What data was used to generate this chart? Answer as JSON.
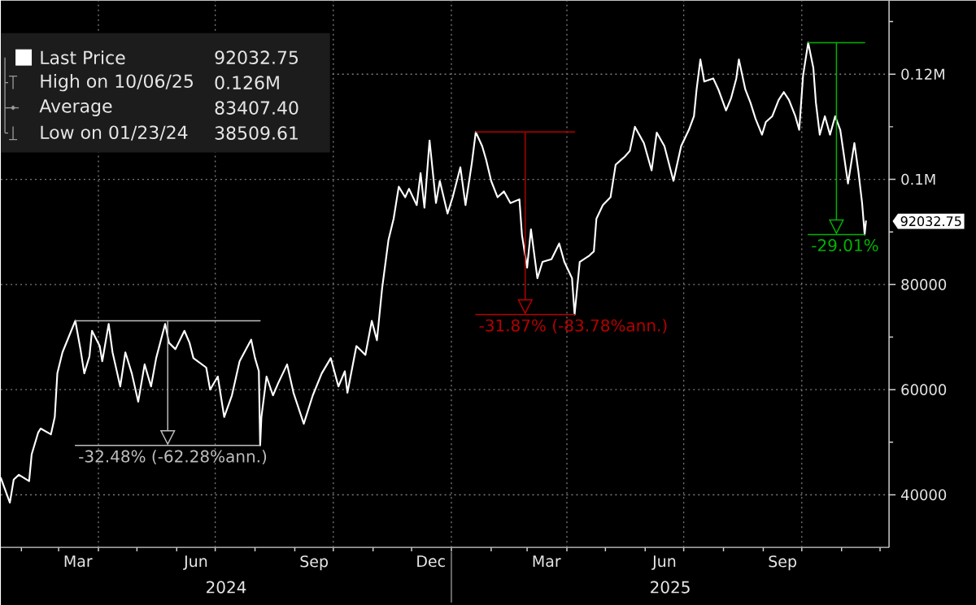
{
  "chart_data": {
    "type": "line",
    "xlim": [
      "2024-01-16",
      "2025-12-08"
    ],
    "ylim": [
      30000,
      134000
    ],
    "xticks": [
      {
        "value": "2024-02-01",
        "label": null
      },
      {
        "value": "2024-03-01",
        "label": null
      },
      {
        "value": "2024-03-16",
        "label": "Mar"
      },
      {
        "value": "2024-04-01",
        "label": null
      },
      {
        "value": "2024-05-01",
        "label": null
      },
      {
        "value": "2024-06-01",
        "label": null
      },
      {
        "value": "2024-06-16",
        "label": "Jun"
      },
      {
        "value": "2024-07-01",
        "label": null
      },
      {
        "value": "2024-08-01",
        "label": null
      },
      {
        "value": "2024-09-01",
        "label": null
      },
      {
        "value": "2024-09-16",
        "label": "Sep"
      },
      {
        "value": "2024-10-01",
        "label": null
      },
      {
        "value": "2024-11-01",
        "label": null
      },
      {
        "value": "2024-12-01",
        "label": null
      },
      {
        "value": "2024-12-16",
        "label": "Dec"
      },
      {
        "value": "2025-01-01",
        "label": null
      },
      {
        "value": "2025-02-01",
        "label": null
      },
      {
        "value": "2025-03-01",
        "label": null
      },
      {
        "value": "2025-03-16",
        "label": "Mar"
      },
      {
        "value": "2025-04-01",
        "label": null
      },
      {
        "value": "2025-05-01",
        "label": null
      },
      {
        "value": "2025-06-01",
        "label": null
      },
      {
        "value": "2025-06-16",
        "label": "Jun"
      },
      {
        "value": "2025-07-01",
        "label": null
      },
      {
        "value": "2025-08-01",
        "label": null
      },
      {
        "value": "2025-09-01",
        "label": null
      },
      {
        "value": "2025-09-16",
        "label": "Sep"
      },
      {
        "value": "2025-10-01",
        "label": null
      },
      {
        "value": "2025-11-01",
        "label": null
      },
      {
        "value": "2025-12-01",
        "label": null
      }
    ],
    "yticks": [
      40000,
      {
        "value": 50000,
        "label": null
      },
      60000,
      {
        "value": 70000,
        "label": null
      },
      80000,
      {
        "value": 90000,
        "label": null
      },
      {
        "value": 100000,
        "label": "0.1M"
      },
      {
        "value": 110000,
        "label": null
      },
      {
        "value": 120000,
        "label": "0.12M"
      },
      {
        "value": 130000,
        "label": null
      }
    ],
    "grid": true,
    "legend": "top left",
    "series": [
      {
        "name": "Last Price",
        "color": "#ffffff",
        "x": [
          "2024-01-16",
          "2024-01-23",
          "2024-01-26",
          "2024-01-30",
          "2024-02-07",
          "2024-02-09",
          "2024-02-14",
          "2024-02-16",
          "2024-02-24",
          "2024-02-27",
          "2024-02-29",
          "2024-03-04",
          "2024-03-08",
          "2024-03-14",
          "2024-03-18",
          "2024-03-21",
          "2024-03-25",
          "2024-03-27",
          "2024-04-02",
          "2024-04-04",
          "2024-04-09",
          "2024-04-12",
          "2024-04-18",
          "2024-04-22",
          "2024-04-27",
          "2024-05-02",
          "2024-05-07",
          "2024-05-12",
          "2024-05-16",
          "2024-05-23",
          "2024-05-26",
          "2024-05-31",
          "2024-06-07",
          "2024-06-11",
          "2024-06-14",
          "2024-06-24",
          "2024-06-27",
          "2024-07-03",
          "2024-07-08",
          "2024-07-14",
          "2024-07-20",
          "2024-07-25",
          "2024-07-29",
          "2024-08-01",
          "2024-08-04",
          "2024-08-05",
          "2024-08-06",
          "2024-08-10",
          "2024-08-15",
          "2024-08-19",
          "2024-08-26",
          "2024-08-31",
          "2024-09-08",
          "2024-09-15",
          "2024-09-22",
          "2024-09-29",
          "2024-10-05",
          "2024-10-10",
          "2024-10-12",
          "2024-10-19",
          "2024-10-26",
          "2024-10-31",
          "2024-11-04",
          "2024-11-08",
          "2024-11-13",
          "2024-11-17",
          "2024-11-21",
          "2024-11-26",
          "2024-11-29",
          "2024-12-05",
          "2024-12-08",
          "2024-12-11",
          "2024-12-15",
          "2024-12-20",
          "2024-12-23",
          "2024-12-29",
          "2025-01-02",
          "2025-01-08",
          "2025-01-12",
          "2025-01-17",
          "2025-01-20",
          "2025-01-25",
          "2025-01-28",
          "2025-02-01",
          "2025-02-06",
          "2025-02-11",
          "2025-02-16",
          "2025-02-23",
          "2025-02-25",
          "2025-03-01",
          "2025-03-04",
          "2025-03-09",
          "2025-03-13",
          "2025-03-20",
          "2025-03-26",
          "2025-03-30",
          "2025-04-05",
          "2025-04-07",
          "2025-04-11",
          "2025-04-18",
          "2025-04-22",
          "2025-04-24",
          "2025-04-29",
          "2025-05-05",
          "2025-05-09",
          "2025-05-16",
          "2025-05-20",
          "2025-05-24",
          "2025-05-31",
          "2025-06-06",
          "2025-06-10",
          "2025-06-16",
          "2025-06-23",
          "2025-06-29",
          "2025-07-05",
          "2025-07-09",
          "2025-07-11",
          "2025-07-14",
          "2025-07-17",
          "2025-07-24",
          "2025-07-28",
          "2025-07-31",
          "2025-08-03",
          "2025-08-07",
          "2025-08-11",
          "2025-08-13",
          "2025-08-18",
          "2025-08-22",
          "2025-08-26",
          "2025-08-31",
          "2025-09-03",
          "2025-09-08",
          "2025-09-13",
          "2025-09-17",
          "2025-09-21",
          "2025-09-26",
          "2025-09-29",
          "2025-10-02",
          "2025-10-06",
          "2025-10-10",
          "2025-10-12",
          "2025-10-15",
          "2025-10-19",
          "2025-10-23",
          "2025-10-27",
          "2025-10-31",
          "2025-11-03",
          "2025-11-06",
          "2025-11-11",
          "2025-11-14",
          "2025-11-17",
          "2025-11-19",
          "2025-11-20"
        ],
        "values": [
          43200,
          38500,
          42900,
          43800,
          42600,
          47700,
          51800,
          52600,
          51500,
          54800,
          63100,
          67100,
          69500,
          73100,
          67700,
          63100,
          66300,
          71200,
          68300,
          65400,
          72500,
          67100,
          60600,
          67100,
          63100,
          57700,
          64800,
          60600,
          66000,
          72500,
          68900,
          67700,
          71200,
          68900,
          66000,
          64200,
          60000,
          62500,
          54800,
          58900,
          65400,
          67700,
          69500,
          66000,
          63500,
          49400,
          54800,
          62500,
          58900,
          61200,
          64800,
          59400,
          53500,
          58900,
          63100,
          66000,
          60600,
          63500,
          59400,
          68300,
          66600,
          73100,
          69400,
          79200,
          88500,
          92500,
          98600,
          96600,
          98200,
          95100,
          101200,
          94600,
          107400,
          95500,
          99700,
          93500,
          96600,
          102300,
          95100,
          103200,
          109000,
          106300,
          103800,
          99700,
          96600,
          97700,
          95500,
          96200,
          89400,
          83200,
          90500,
          81200,
          84300,
          84800,
          87800,
          84300,
          81200,
          74300,
          84300,
          85400,
          86300,
          92500,
          95100,
          96600,
          102800,
          104300,
          105400,
          110000,
          106900,
          101700,
          108900,
          106300,
          99700,
          106300,
          109400,
          112000,
          117000,
          122800,
          118600,
          119200,
          117100,
          115100,
          113100,
          115500,
          119200,
          122800,
          117100,
          114600,
          111500,
          108500,
          110900,
          112000,
          115100,
          116600,
          115100,
          112000,
          109400,
          119700,
          126000,
          121200,
          114600,
          108500,
          112000,
          108500,
          112000,
          109400,
          104300,
          99200,
          106900,
          101700,
          95500,
          89500,
          92032.75
        ]
      },
      {
        "color": "#bebebe",
        "x": [
          "2024-03-14",
          "2024-08-05"
        ],
        "values": [
          73100,
          73100
        ]
      },
      {
        "color": "#bebebe",
        "x": [
          "2024-03-14",
          "2024-08-05"
        ],
        "values": [
          49400,
          49400
        ]
      },
      {
        "color": "#b40000",
        "x": [
          "2025-01-20",
          "2025-04-07"
        ],
        "values": [
          109000,
          109000
        ]
      },
      {
        "color": "#b40000",
        "x": [
          "2025-01-20",
          "2025-04-07"
        ],
        "values": [
          74300,
          74300
        ]
      },
      {
        "color": "#00b400",
        "x": [
          "2025-10-06",
          "2025-11-19"
        ],
        "values": [
          126000,
          126000
        ]
      },
      {
        "color": "#00b400",
        "x": [
          "2025-10-06",
          "2025-11-19"
        ],
        "values": [
          89500,
          89500
        ]
      }
    ],
    "annotations": [
      {
        "text": "92032.75",
        "x": "2025-11-20",
        "y": 92032.75
      },
      {
        "text": "-32.48% (-62.28%ann.)",
        "x": "2024-03-14",
        "y": 49400
      },
      {
        "text": "-31.87% (-83.78%ann.)",
        "x": "2025-01-20",
        "y": 74300
      },
      {
        "text": "-29.01%",
        "x": "2025-10-06",
        "y": 89500
      },
      "2024",
      "2025",
      "High on 10/06/25",
      "0.126M",
      "Average",
      "83407.40",
      "Low on 01/23/24",
      "38509.61"
    ]
  }
}
